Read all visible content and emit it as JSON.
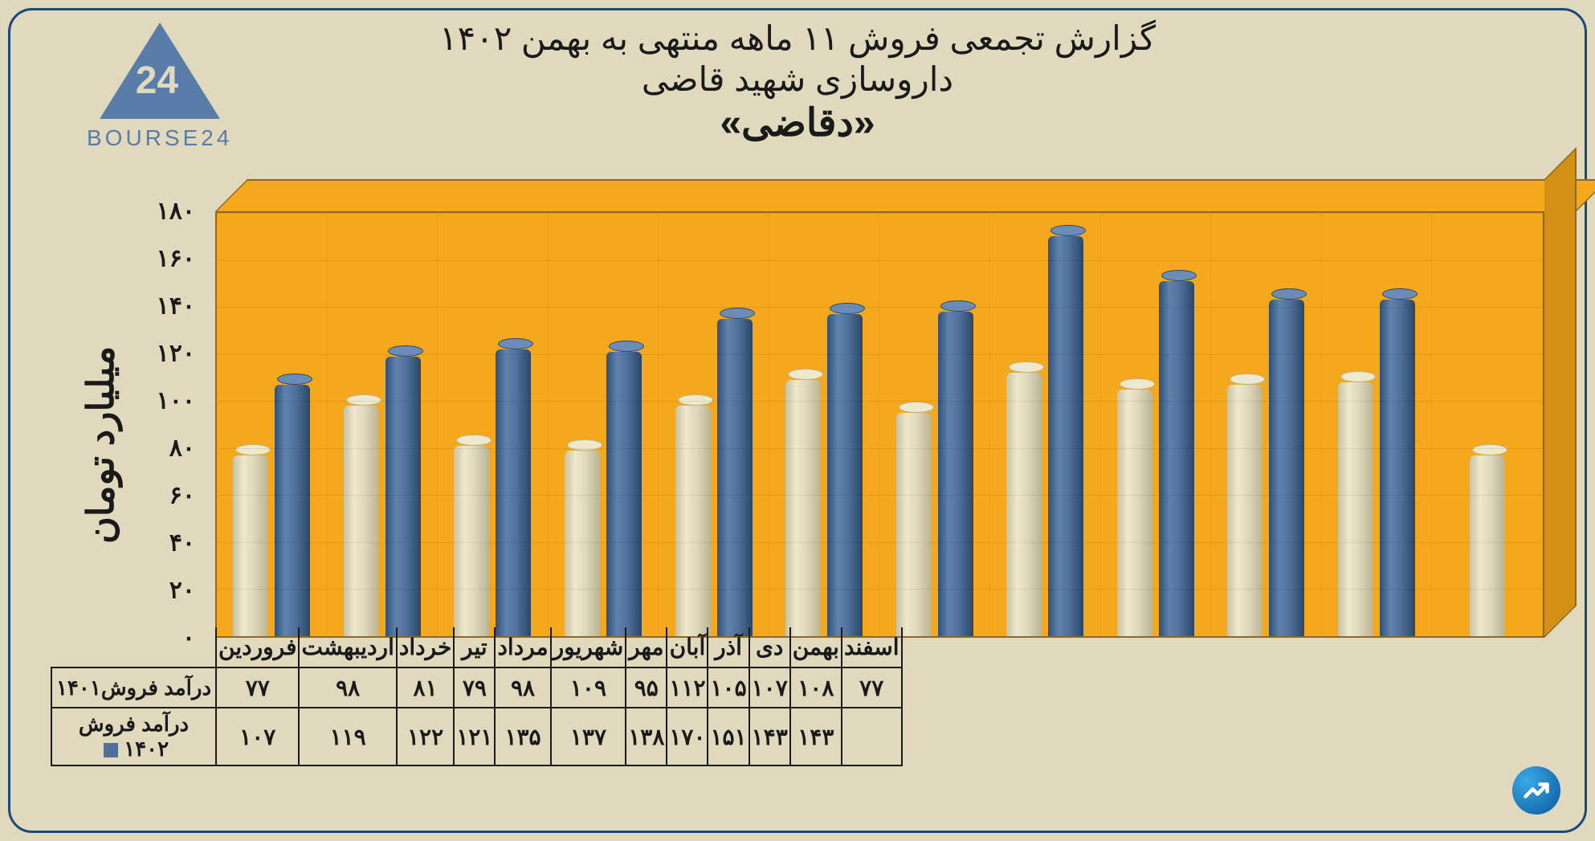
{
  "logo_text": "BOURSE24",
  "title_line1": "گزارش تجمعی فروش ۱۱ ماهه منتهی به بهمن ۱۴۰۲",
  "title_line2": "داروسازی شهید قاضی",
  "title_line3": "«دقاضی»",
  "ylabel": "میلیارد تومان",
  "chart": {
    "type": "bar",
    "ylim": [
      0,
      180
    ],
    "ytick_step": 20,
    "yticks": [
      "۰",
      "۲۰",
      "۴۰",
      "۶۰",
      "۸۰",
      "۱۰۰",
      "۱۲۰",
      "۱۴۰",
      "۱۶۰",
      "۱۸۰"
    ],
    "plot_bg": "#f5a81c",
    "series_a_color": "#ded7b8",
    "series_b_color": "#4f7099",
    "months": [
      "فروردین",
      "اردیبهشت",
      "خرداد",
      "تیر",
      "مرداد",
      "شهریور",
      "مهر",
      "آبان",
      "آذر",
      "دی",
      "بهمن",
      "اسفند"
    ],
    "series_a_label": "درآمد فروش۱۴۰۱",
    "series_b_label": "درآمد فروش ۱۴۰۲",
    "series_a_values": [
      77,
      98,
      81,
      79,
      98,
      109,
      95,
      112,
      105,
      107,
      108,
      77
    ],
    "series_b_values": [
      107,
      119,
      122,
      121,
      135,
      137,
      138,
      170,
      151,
      143,
      143,
      null
    ],
    "series_a_display": [
      "۷۷",
      "۹۸",
      "۸۱",
      "۷۹",
      "۹۸",
      "۱۰۹",
      "۹۵",
      "۱۱۲",
      "۱۰۵",
      "۱۰۷",
      "۱۰۸",
      "۷۷"
    ],
    "series_b_display": [
      "۱۰۷",
      "۱۱۹",
      "۱۲۲",
      "۱۲۱",
      "۱۳۵",
      "۱۳۷",
      "۱۳۸",
      "۱۷۰",
      "۱۵۱",
      "۱۴۳",
      "۱۴۳",
      ""
    ]
  }
}
